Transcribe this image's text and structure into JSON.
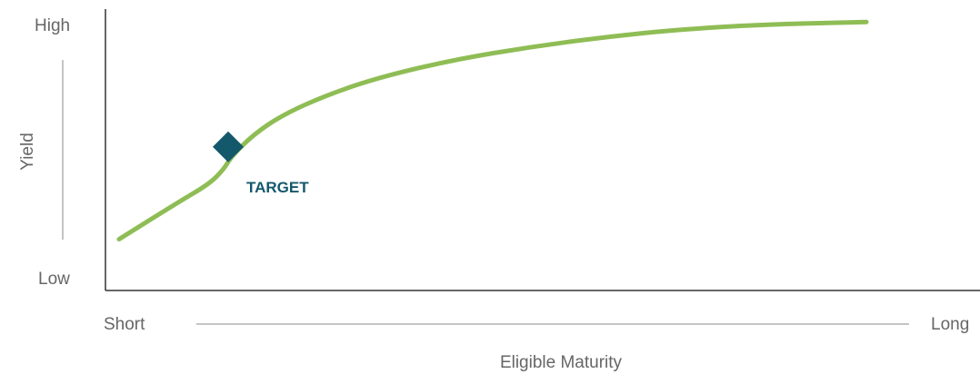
{
  "chart_data": {
    "type": "line",
    "title": "",
    "ylabel": "Yield",
    "xlabel": "Eligible Maturity",
    "y_ticks": {
      "high": "High",
      "low": "Low"
    },
    "x_ticks": {
      "short": "Short",
      "long": "Long"
    },
    "series": [
      {
        "color": "#8fbd55",
        "curve": [
          {
            "x": 0.0,
            "y": 0.1
          },
          {
            "x": 0.08,
            "y": 0.25
          },
          {
            "x": 0.12,
            "y": 0.32
          },
          {
            "x": 0.14,
            "y": 0.38
          },
          {
            "x": 0.15,
            "y": 0.43
          },
          {
            "x": 0.18,
            "y": 0.52
          },
          {
            "x": 0.22,
            "y": 0.6
          },
          {
            "x": 0.28,
            "y": 0.68
          },
          {
            "x": 0.35,
            "y": 0.75
          },
          {
            "x": 0.45,
            "y": 0.82
          },
          {
            "x": 0.55,
            "y": 0.87
          },
          {
            "x": 0.65,
            "y": 0.91
          },
          {
            "x": 0.75,
            "y": 0.94
          },
          {
            "x": 0.86,
            "y": 0.96
          },
          {
            "x": 1.0,
            "y": 0.97
          }
        ]
      }
    ],
    "annotations": [
      {
        "label": "TARGET",
        "x": 0.146,
        "y": 0.47,
        "marker": "diamond",
        "color": "#14586b"
      }
    ],
    "x_range": [
      0,
      1
    ],
    "y_range": [
      0,
      1
    ],
    "grid": false,
    "legend": "none"
  }
}
